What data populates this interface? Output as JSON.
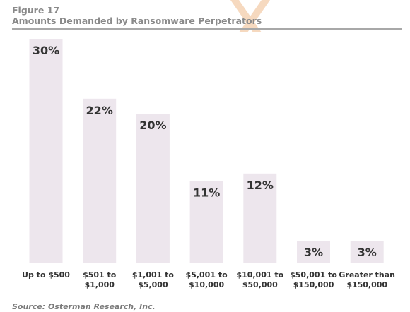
{
  "header": {
    "figure_label": "Figure 17",
    "title": "Amounts Demanded by Ransomware Perpetrators"
  },
  "source": "Source: Osterman Research, Inc.",
  "colors": {
    "bar": "#ede6ed",
    "value_text": "#333333",
    "category_text": "#333333",
    "logo": "#f6d9bf"
  },
  "chart_data": {
    "type": "bar",
    "title": "Amounts Demanded by Ransomware Perpetrators",
    "xlabel": "",
    "ylabel": "",
    "ylim": [
      0,
      30
    ],
    "grid": false,
    "categories": [
      [
        "Up to $500"
      ],
      [
        "$501 to",
        "$1,000"
      ],
      [
        "$1,001 to",
        "$5,000"
      ],
      [
        "$5,001 to",
        "$10,000"
      ],
      [
        "$10,001 to",
        "$50,000"
      ],
      [
        "$50,001 to",
        "$150,000"
      ],
      [
        "Greater than",
        "$150,000"
      ]
    ],
    "values": [
      30,
      22,
      20,
      11,
      12,
      3,
      3
    ],
    "value_labels": [
      "30%",
      "22%",
      "20%",
      "11%",
      "12%",
      "3%",
      "3%"
    ]
  }
}
